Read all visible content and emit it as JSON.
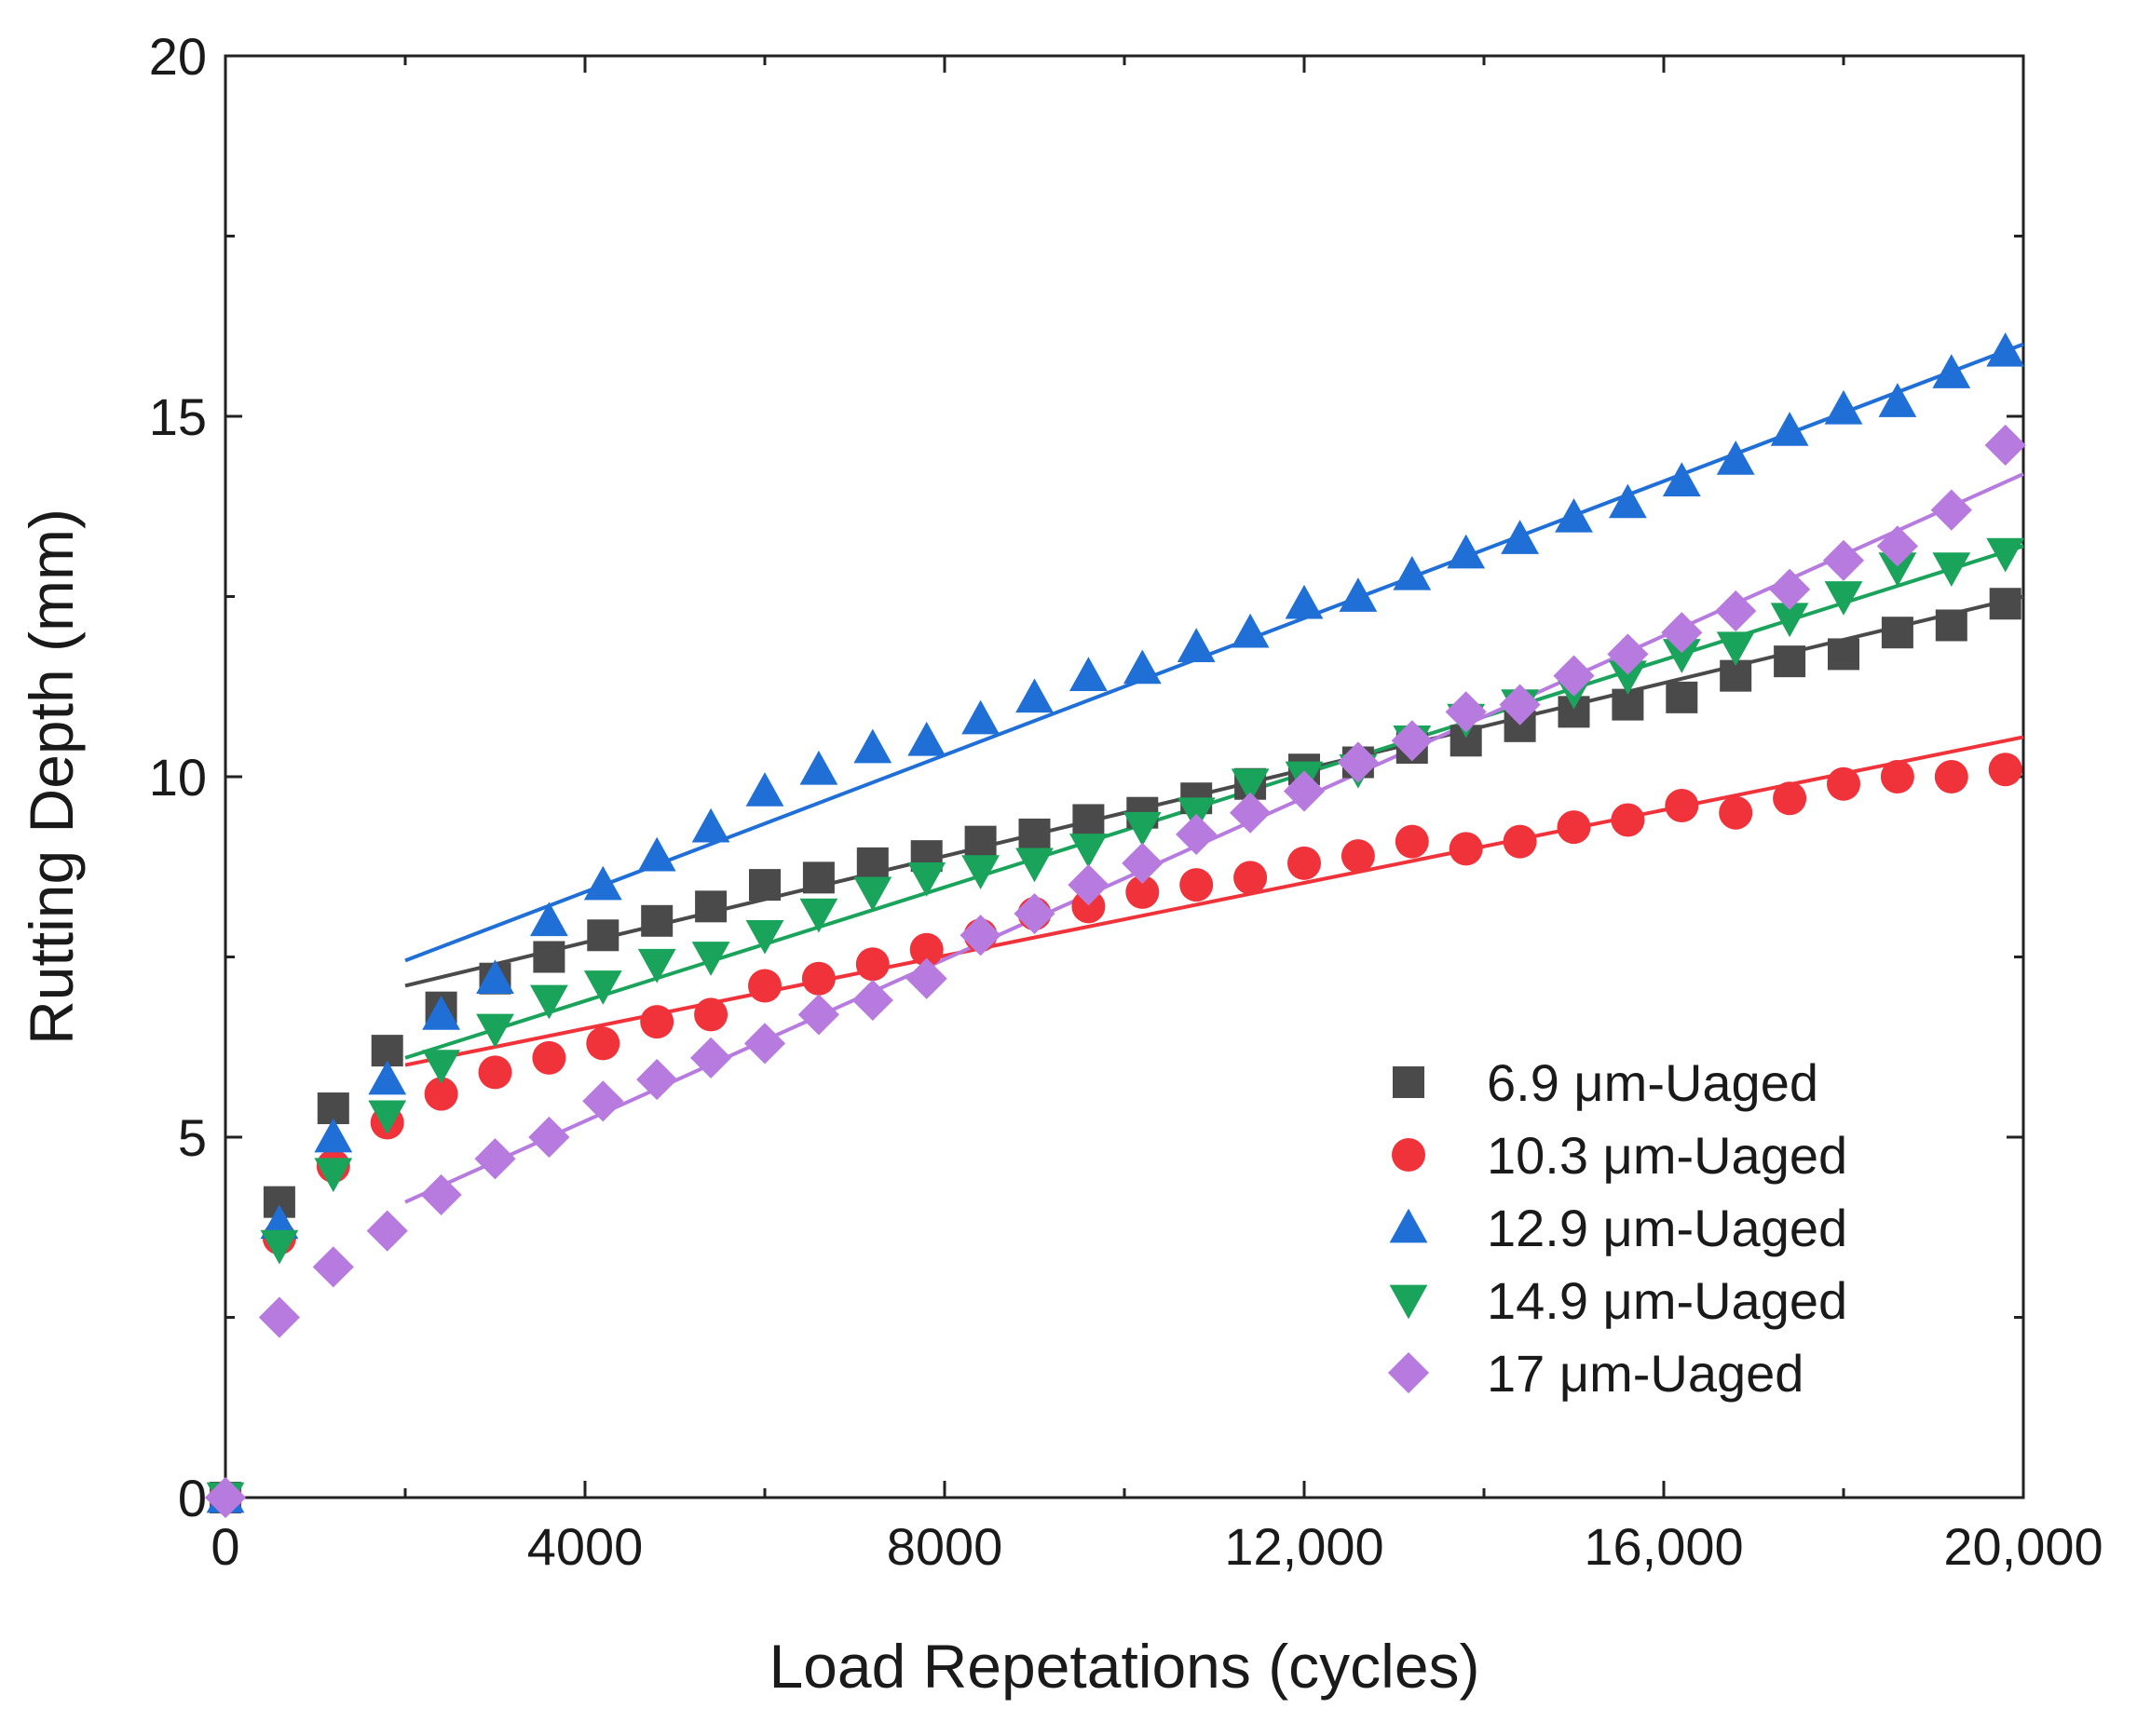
{
  "chart_data": {
    "type": "scatter",
    "title": "",
    "xlabel": "Load Repetations (cycles)",
    "ylabel": "Rutting Depth (mm)",
    "xlim": [
      0,
      20000
    ],
    "ylim": [
      0,
      20
    ],
    "x_ticks": [
      0,
      4000,
      8000,
      12000,
      16000,
      20000
    ],
    "x_tick_labels": [
      "0",
      "4000",
      "8000",
      "12,000",
      "16,000",
      "20,000"
    ],
    "y_ticks": [
      0,
      5,
      10,
      15,
      20
    ],
    "y_tick_labels": [
      "0",
      "5",
      "10",
      "15",
      "20"
    ],
    "grid": false,
    "legend_position": "bottom-right",
    "x": [
      0,
      600,
      1200,
      1800,
      2400,
      3000,
      3600,
      4200,
      4800,
      5400,
      6000,
      6600,
      7200,
      7800,
      8400,
      9000,
      9600,
      10200,
      10800,
      11400,
      12000,
      12600,
      13200,
      13800,
      14400,
      15000,
      15600,
      16200,
      16800,
      17400,
      18000,
      18600,
      19200,
      19800
    ],
    "series": [
      {
        "name": "6.9 μm-Uaged",
        "marker": "square",
        "color": "#4a4a4a",
        "values": [
          0,
          4.1,
          5.4,
          6.2,
          6.8,
          7.2,
          7.5,
          7.8,
          8.0,
          8.2,
          8.5,
          8.6,
          8.8,
          8.9,
          9.1,
          9.2,
          9.4,
          9.5,
          9.7,
          9.9,
          10.1,
          10.2,
          10.4,
          10.5,
          10.7,
          10.9,
          11.0,
          11.1,
          11.4,
          11.6,
          11.7,
          12.0,
          12.1,
          12.4
        ],
        "fit": {
          "x": [
            2000,
            20000
          ],
          "y": [
            7.1,
            12.5
          ]
        }
      },
      {
        "name": "10.3 μm-Uaged",
        "marker": "circle",
        "color": "#f0333a",
        "values": [
          0,
          3.6,
          4.6,
          5.2,
          5.6,
          5.9,
          6.1,
          6.3,
          6.6,
          6.7,
          7.1,
          7.2,
          7.4,
          7.6,
          7.8,
          8.1,
          8.2,
          8.4,
          8.5,
          8.6,
          8.8,
          8.9,
          9.1,
          9.0,
          9.1,
          9.3,
          9.4,
          9.6,
          9.5,
          9.7,
          9.9,
          10.0,
          10.0,
          10.1
        ],
        "fit": {
          "x": [
            2000,
            20000
          ],
          "y": [
            6.0,
            10.55
          ]
        }
      },
      {
        "name": "12.9 μm-Uaged",
        "marker": "triangle-up",
        "color": "#1f6fd6",
        "values": [
          0,
          3.8,
          5.0,
          5.8,
          6.7,
          7.2,
          8.0,
          8.5,
          8.9,
          9.3,
          9.8,
          10.1,
          10.4,
          10.5,
          10.8,
          11.1,
          11.4,
          11.5,
          11.8,
          12.0,
          12.4,
          12.5,
          12.8,
          13.1,
          13.3,
          13.6,
          13.8,
          14.1,
          14.4,
          14.8,
          15.1,
          15.2,
          15.6,
          15.9
        ],
        "fit": {
          "x": [
            2000,
            20000
          ],
          "y": [
            7.45,
            16.0
          ]
        }
      },
      {
        "name": "14.9 μm-Uaged",
        "marker": "triangle-down",
        "color": "#1aa35a",
        "values": [
          0,
          3.5,
          4.5,
          5.3,
          6.0,
          6.5,
          6.9,
          7.1,
          7.4,
          7.5,
          7.8,
          8.1,
          8.4,
          8.6,
          8.7,
          8.8,
          9.0,
          9.3,
          9.5,
          9.9,
          10.0,
          10.1,
          10.5,
          10.8,
          11.0,
          11.2,
          11.4,
          11.7,
          11.8,
          12.2,
          12.5,
          12.9,
          12.9,
          13.1
        ],
        "fit": {
          "x": [
            2000,
            20000
          ],
          "y": [
            6.1,
            13.2
          ]
        }
      },
      {
        "name": "17 μm-Uaged",
        "marker": "diamond",
        "color": "#b77be0",
        "values": [
          0,
          2.5,
          3.2,
          3.7,
          4.2,
          4.7,
          5.0,
          5.5,
          5.8,
          6.1,
          6.3,
          6.7,
          6.9,
          7.2,
          7.8,
          8.1,
          8.5,
          8.8,
          9.2,
          9.5,
          9.8,
          10.2,
          10.5,
          10.9,
          11.0,
          11.4,
          11.7,
          12.0,
          12.3,
          12.6,
          13.0,
          13.2,
          13.7,
          14.6
        ],
        "fit": {
          "x": [
            2000,
            20000
          ],
          "y": [
            4.1,
            14.2
          ]
        }
      }
    ]
  }
}
